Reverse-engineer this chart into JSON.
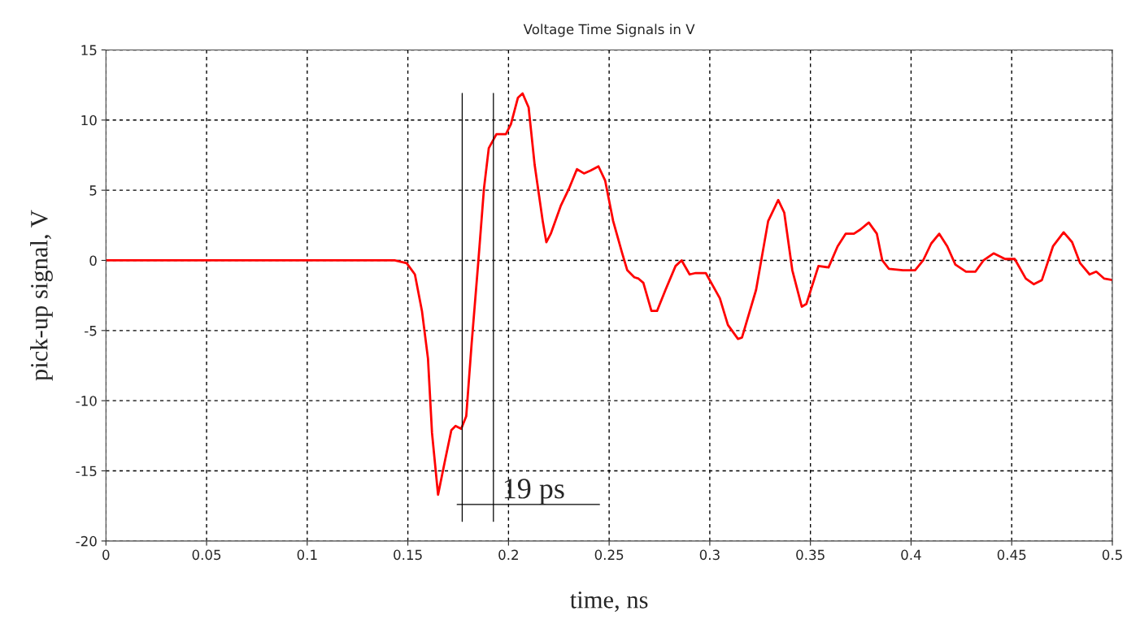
{
  "chart_data": {
    "type": "line",
    "title": "Voltage Time Signals in V",
    "xlabel": "time, ns",
    "ylabel": "pick-up signal, V",
    "xlim": [
      0,
      0.5
    ],
    "xticks": [
      0,
      0.05,
      0.1,
      0.15,
      0.2,
      0.25,
      0.3,
      0.35,
      0.4,
      0.45,
      0.5
    ],
    "ylim": [
      -20,
      15
    ],
    "yticks": [
      -20,
      -15,
      -10,
      -5,
      0,
      5,
      10,
      15
    ],
    "grid": true,
    "line_style": "solid",
    "series": [
      {
        "color": "#ff0000",
        "x": [
          0,
          0.1434,
          0.1494,
          0.1535,
          0.157,
          0.16,
          0.162,
          0.165,
          0.1684,
          0.1716,
          0.1737,
          0.1765,
          0.179,
          0.1817,
          0.185,
          0.1878,
          0.1902,
          0.194,
          0.1987,
          0.2012,
          0.2047,
          0.207,
          0.21,
          0.213,
          0.217,
          0.2188,
          0.221,
          0.226,
          0.23,
          0.234,
          0.2375,
          0.2407,
          0.2447,
          0.248,
          0.252,
          0.2565,
          0.259,
          0.2625,
          0.2646,
          0.267,
          0.271,
          0.2738,
          0.278,
          0.283,
          0.286,
          0.29,
          0.293,
          0.298,
          0.305,
          0.309,
          0.314,
          0.316,
          0.323,
          0.329,
          0.334,
          0.337,
          0.341,
          0.3457,
          0.348,
          0.354,
          0.359,
          0.3635,
          0.3675,
          0.3716,
          0.3748,
          0.379,
          0.383,
          0.3857,
          0.389,
          0.396,
          0.402,
          0.406,
          0.41,
          0.414,
          0.418,
          0.422,
          0.4273,
          0.432,
          0.436,
          0.441,
          0.4467,
          0.4515,
          0.457,
          0.461,
          0.465,
          0.4705,
          0.4758,
          0.48,
          0.484,
          0.4887,
          0.492,
          0.496,
          0.5
        ],
        "values": [
          0,
          0,
          -0.2,
          -1,
          -3.6,
          -7,
          -12.3,
          -16.7,
          -14.3,
          -12.1,
          -11.8,
          -12,
          -11.1,
          -5.9,
          -0.1,
          5.1,
          8,
          9,
          9,
          9.7,
          11.6,
          11.9,
          10.9,
          6.8,
          2.8,
          1.3,
          1.9,
          3.9,
          5.1,
          6.5,
          6.2,
          6.4,
          6.7,
          5.7,
          2.8,
          0.5,
          -0.7,
          -1.2,
          -1.3,
          -1.6,
          -3.6,
          -3.6,
          -2.1,
          -0.4,
          0,
          -1,
          -0.9,
          -0.9,
          -2.7,
          -4.6,
          -5.6,
          -5.5,
          -2.1,
          2.8,
          4.3,
          3.4,
          -0.7,
          -3.3,
          -3.1,
          -0.4,
          -0.5,
          1,
          1.9,
          1.9,
          2.2,
          2.7,
          1.9,
          0,
          -0.6,
          -0.7,
          -0.7,
          0,
          1.2,
          1.9,
          1,
          -0.3,
          -0.8,
          -0.8,
          0,
          0.5,
          0.1,
          0.1,
          -1.3,
          -1.7,
          -1.4,
          1,
          2,
          1.3,
          -0.2,
          -1,
          -0.8,
          -1.3,
          -1.4
        ]
      },
      {
        "color": "#000000",
        "x": [
          0.177,
          0.177
        ],
        "values": [
          11.9,
          -18.6
        ]
      },
      {
        "color": "#000000",
        "x": [
          0.1925,
          0.1925
        ],
        "values": [
          11.9,
          -18.6
        ]
      },
      {
        "color": "#000000",
        "x": [
          0.1745,
          0.2452
        ],
        "values": [
          -17.4,
          -17.4
        ]
      }
    ],
    "annotations": [
      {
        "text": "19 ps",
        "x": 0.2125,
        "y": -17.4
      }
    ]
  }
}
